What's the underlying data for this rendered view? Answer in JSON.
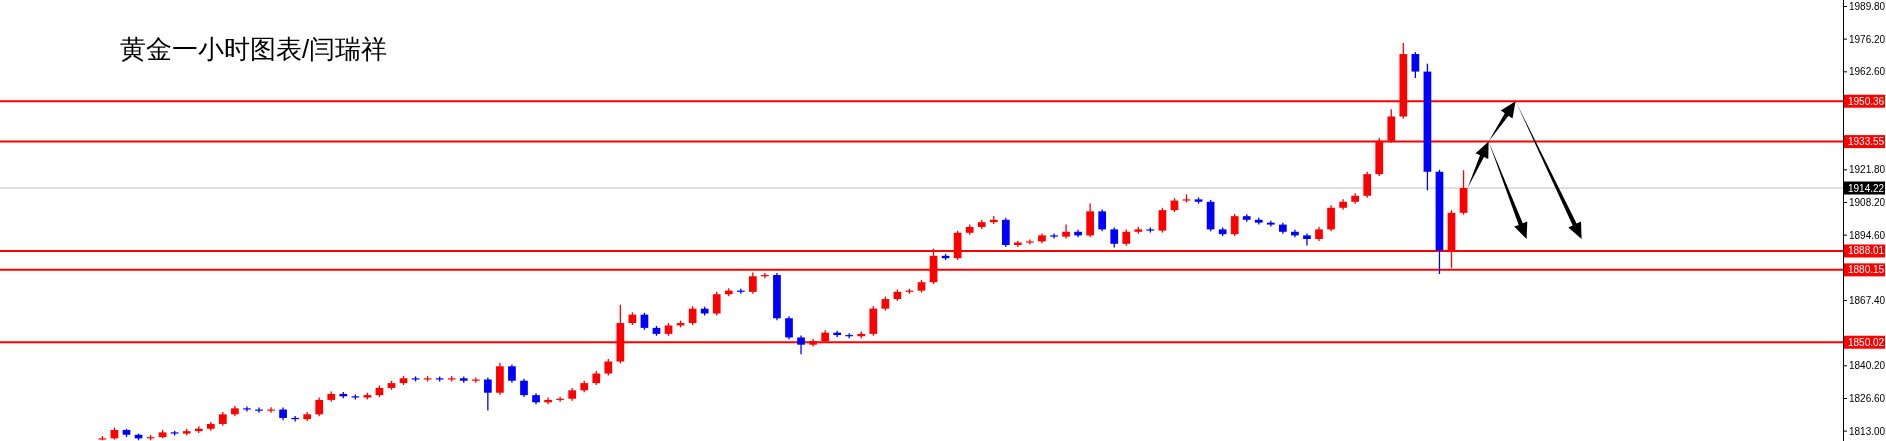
{
  "chart_data": {
    "type": "candlestick",
    "title": "黄金一小时图表/闫瑞祥",
    "categories": [
      null,
      null,
      null,
      null,
      null,
      null,
      null,
      null,
      null,
      null,
      null,
      null,
      null,
      null,
      null,
      null,
      null,
      null,
      null,
      null,
      null,
      null,
      null,
      null,
      null,
      null,
      null,
      null,
      null,
      null,
      null,
      null,
      null,
      null,
      null,
      null,
      null,
      null,
      null,
      null,
      null,
      null,
      null,
      null,
      null,
      null,
      null,
      null,
      null,
      null,
      null,
      null,
      null,
      null,
      null,
      null,
      null,
      null,
      null,
      null,
      null,
      null,
      null,
      null,
      null,
      null,
      null,
      null,
      null,
      null,
      null,
      null,
      null,
      null,
      null,
      null,
      null,
      null,
      null,
      null,
      null,
      null,
      null,
      null,
      null,
      null,
      null,
      null,
      null,
      null,
      null,
      null,
      null,
      null,
      null,
      null,
      null,
      null,
      null,
      null,
      null,
      null,
      null,
      null,
      null,
      null,
      null,
      null,
      null,
      null,
      null,
      null,
      null,
      null,
      null,
      null,
      null,
      null,
      null,
      null,
      null,
      null,
      null,
      null,
      null,
      null,
      null,
      null,
      null,
      null,
      null,
      null,
      null,
      null,
      null,
      null,
      null,
      null,
      null,
      null,
      null,
      null,
      null,
      null,
      null,
      null,
      null,
      null,
      null,
      null,
      null,
      null,
      null
    ],
    "ohlc": [
      null,
      null,
      null,
      null,
      null,
      null,
      null,
      null,
      [
        1809.5,
        1811,
        1809.2,
        1810
      ],
      [
        1810,
        1814.5,
        1809.5,
        1813.5
      ],
      [
        1813.5,
        1814,
        1810.5,
        1811.5
      ],
      [
        1811.5,
        1812,
        1809.2,
        1810
      ],
      [
        1810,
        1811.5,
        1809.2,
        1810.5
      ],
      [
        1810.5,
        1813.5,
        1810,
        1812.5
      ],
      [
        1812.5,
        1813.2,
        1811.2,
        1812
      ],
      [
        1812,
        1814,
        1811.2,
        1813
      ],
      [
        1813,
        1815,
        1812.2,
        1814
      ],
      [
        1814,
        1816.8,
        1813.2,
        1816
      ],
      [
        1816,
        1821,
        1815.2,
        1820
      ],
      [
        1820,
        1823.5,
        1819.2,
        1822.5
      ],
      [
        1822.5,
        1823.3,
        1821.2,
        1822
      ],
      [
        1822,
        1822.8,
        1820.7,
        1821.5
      ],
      [
        1821.5,
        1823,
        1820.7,
        1822
      ],
      [
        1822,
        1822.8,
        1817.5,
        1818.5
      ],
      [
        1818.5,
        1819.3,
        1817,
        1818
      ],
      [
        1818,
        1821,
        1817.2,
        1820
      ],
      [
        1820,
        1827,
        1819.2,
        1826
      ],
      [
        1826,
        1829.5,
        1825.2,
        1828.5
      ],
      [
        1828.5,
        1829.3,
        1826.7,
        1827.5
      ],
      [
        1827.5,
        1828.3,
        1826.2,
        1827
      ],
      [
        1827,
        1829,
        1826.2,
        1828
      ],
      [
        1828,
        1832,
        1827.2,
        1831
      ],
      [
        1831,
        1834,
        1830.2,
        1833
      ],
      [
        1833,
        1836,
        1832.2,
        1835
      ],
      [
        1835,
        1835.8,
        1833.7,
        1834.5
      ],
      [
        1834.5,
        1836,
        1833.7,
        1835
      ],
      [
        1835,
        1835.8,
        1833.7,
        1834.5
      ],
      [
        1834.5,
        1836,
        1833.7,
        1835
      ],
      [
        1835,
        1835.8,
        1833.2,
        1834
      ],
      [
        1834,
        1835.3,
        1833.2,
        1834.5
      ],
      [
        1834.5,
        1835.3,
        1821.6,
        1829
      ],
      [
        1829,
        1841.5,
        1828.2,
        1840
      ],
      [
        1840,
        1840.8,
        1833.2,
        1834
      ],
      [
        1834,
        1834.8,
        1827.2,
        1828
      ],
      [
        1828,
        1828.8,
        1824.2,
        1825
      ],
      [
        1825,
        1827,
        1824.2,
        1826
      ],
      [
        1826,
        1827.3,
        1825.2,
        1826.5
      ],
      [
        1826.5,
        1831,
        1825.7,
        1830
      ],
      [
        1830,
        1834,
        1829.2,
        1833
      ],
      [
        1833,
        1838,
        1832.2,
        1837
      ],
      [
        1837,
        1843,
        1836.2,
        1842
      ],
      [
        1842,
        1865.6,
        1841.2,
        1858
      ],
      [
        1858,
        1862.5,
        1857.2,
        1861.5
      ],
      [
        1861.5,
        1862.3,
        1855.2,
        1856
      ],
      [
        1856,
        1856.8,
        1852.7,
        1853.5
      ],
      [
        1853.5,
        1858,
        1852.7,
        1857
      ],
      [
        1857,
        1859,
        1856.2,
        1858
      ],
      [
        1858,
        1865,
        1857.2,
        1864
      ],
      [
        1864,
        1864.8,
        1861.2,
        1862
      ],
      [
        1862,
        1871,
        1861.2,
        1870
      ],
      [
        1870,
        1872.5,
        1869.2,
        1871.5
      ],
      [
        1871.5,
        1872.3,
        1870.2,
        1871
      ],
      [
        1871,
        1879,
        1870.2,
        1877.5
      ],
      [
        1877.5,
        1878.8,
        1876.7,
        1878
      ],
      [
        1878,
        1878.8,
        1859.2,
        1860
      ],
      [
        1860,
        1860.8,
        1851.2,
        1852
      ],
      [
        1852,
        1852.8,
        1845,
        1849
      ],
      [
        1849,
        1851.5,
        1848.2,
        1850.5
      ],
      [
        1850.5,
        1855,
        1849.7,
        1854
      ],
      [
        1854,
        1854.8,
        1852.2,
        1853
      ],
      [
        1853,
        1853.8,
        1851.7,
        1852.5
      ],
      [
        1852.5,
        1854.5,
        1851.7,
        1853.5
      ],
      [
        1853.5,
        1865,
        1852.7,
        1864
      ],
      [
        1864,
        1869,
        1863.2,
        1868
      ],
      [
        1868,
        1872,
        1867.2,
        1871
      ],
      [
        1871,
        1872.3,
        1870.2,
        1871.5
      ],
      [
        1871.5,
        1876,
        1870.7,
        1875
      ],
      [
        1875,
        1889,
        1874.2,
        1886
      ],
      [
        1886,
        1886.8,
        1884.2,
        1885
      ],
      [
        1885,
        1896.4,
        1884.2,
        1895.6
      ],
      [
        1895.6,
        1899,
        1894.8,
        1898
      ],
      [
        1898,
        1901,
        1897.2,
        1900
      ],
      [
        1900,
        1902.6,
        1899.2,
        1901
      ],
      [
        1901,
        1901.8,
        1889.7,
        1890.5
      ],
      [
        1890.5,
        1892.3,
        1889.7,
        1891.5
      ],
      [
        1891.5,
        1892.8,
        1890.7,
        1892
      ],
      [
        1892,
        1895.3,
        1891.2,
        1894.5
      ],
      [
        1894.5,
        1895.3,
        1893.2,
        1894
      ],
      [
        1894,
        1899,
        1893.2,
        1896
      ],
      [
        1896,
        1896.8,
        1893.7,
        1894.5
      ],
      [
        1894.5,
        1907.8,
        1893.7,
        1904.5
      ],
      [
        1904.5,
        1905.3,
        1896.2,
        1897
      ],
      [
        1897,
        1897.8,
        1889.5,
        1891
      ],
      [
        1891,
        1897,
        1890.2,
        1896
      ],
      [
        1896,
        1898,
        1895.2,
        1897
      ],
      [
        1897,
        1897.8,
        1895.7,
        1896.5
      ],
      [
        1896.5,
        1906,
        1895.7,
        1905
      ],
      [
        1905,
        1910,
        1904.2,
        1909
      ],
      [
        1909,
        1911.6,
        1908.2,
        1909.5
      ],
      [
        1909.5,
        1910.3,
        1907.7,
        1908.5
      ],
      [
        1908.5,
        1909.3,
        1896.2,
        1897
      ],
      [
        1897,
        1897.8,
        1894.2,
        1895
      ],
      [
        1895,
        1903.4,
        1894.2,
        1902.5
      ],
      [
        1902.5,
        1903.3,
        1900.2,
        1901
      ],
      [
        1901,
        1901.8,
        1899,
        1899.8
      ],
      [
        1899.8,
        1900.6,
        1898.2,
        1899
      ],
      [
        1899,
        1899.8,
        1895.2,
        1896
      ],
      [
        1896,
        1896.8,
        1893.7,
        1894.5
      ],
      [
        1894.5,
        1895.3,
        1890.3,
        1893
      ],
      [
        1893,
        1898,
        1892.2,
        1897
      ],
      [
        1897,
        1907,
        1896.2,
        1906
      ],
      [
        1906,
        1909.5,
        1905.2,
        1908.5
      ],
      [
        1908.5,
        1912,
        1907.7,
        1911
      ],
      [
        1911,
        1921,
        1910.2,
        1920
      ],
      [
        1920,
        1935,
        1919.2,
        1933.9
      ],
      [
        1933.9,
        1947,
        1933.1,
        1944
      ],
      [
        1944,
        1974.6,
        1943.2,
        1970
      ],
      [
        1970,
        1970.8,
        1960,
        1962.7
      ],
      [
        1962.7,
        1966,
        1913.3,
        1921
      ],
      [
        1921,
        1921.8,
        1878.4,
        1888.2
      ],
      [
        1888.2,
        1905,
        1881,
        1903.9
      ],
      [
        1903.9,
        1921.6,
        1903.1,
        1914.22
      ],
      null,
      null,
      null,
      null,
      null,
      null,
      null,
      null,
      null,
      null,
      null,
      null,
      null,
      null,
      null,
      null,
      null,
      null,
      null,
      null,
      null,
      null,
      null,
      null,
      null,
      null,
      null,
      null,
      null,
      null,
      null
    ],
    "colors": [
      null,
      null,
      null,
      null,
      null,
      null,
      null,
      null,
      "#ff0000",
      "#ff0000",
      "#0000ff",
      "#0000ff",
      "#ff0000",
      "#ff0000",
      "#0000ff",
      "#ff0000",
      "#ff0000",
      "#ff0000",
      "#ff0000",
      "#ff0000",
      "#0000ff",
      "#0000ff",
      "#ff0000",
      "#0000ff",
      "#0000ff",
      "#ff0000",
      "#ff0000",
      "#ff0000",
      "#0000ff",
      "#0000ff",
      "#ff0000",
      "#ff0000",
      "#ff0000",
      "#ff0000",
      "#0000ff",
      "#ff0000",
      "#0000ff",
      "#ff0000",
      "#0000ff",
      "#ff0000",
      "#0000ff",
      "#ff0000",
      "#0000ff",
      "#0000ff",
      "#0000ff",
      "#ff0000",
      "#ff0000",
      "#ff0000",
      "#ff0000",
      "#ff0000",
      "#ff0000",
      "#ff0000",
      "#ff0000",
      "#0000ff",
      "#0000ff",
      "#ff0000",
      "#ff0000",
      "#ff0000",
      "#0000ff",
      "#ff0000",
      "#ff0000",
      "#0000ff",
      "#ff0000",
      "#ff0000",
      "#0000ff",
      "#0000ff",
      "#0000ff",
      "#ff0000",
      "#ff0000",
      "#0000ff",
      "#0000ff",
      "#ff0000",
      "#ff0000",
      "#ff0000",
      "#ff0000",
      "#ff0000",
      "#ff0000",
      "#ff0000",
      "#0000ff",
      "#ff0000",
      "#ff0000",
      "#ff0000",
      "#ff0000",
      "#0000ff",
      "#ff0000",
      "#ff0000",
      "#ff0000",
      "#0000ff",
      "#ff0000",
      "#0000ff",
      "#ff0000",
      "#0000ff",
      "#0000ff",
      "#ff0000",
      "#ff0000",
      "#0000ff",
      "#ff0000",
      "#ff0000",
      "#ff0000",
      "#0000ff",
      "#0000ff",
      "#0000ff",
      "#ff0000",
      "#0000ff",
      "#0000ff",
      "#0000ff",
      "#0000ff",
      "#0000ff",
      "#0000ff",
      "#ff0000",
      "#ff0000",
      "#ff0000",
      "#ff0000",
      "#ff0000",
      "#ff0000",
      "#ff0000",
      "#ff0000",
      "#0000ff",
      "#0000ff",
      "#0000ff",
      "#ff0000",
      "#ff0000",
      null,
      null,
      null,
      null,
      null,
      null,
      null,
      null,
      null,
      null,
      null,
      null,
      null,
      null,
      null,
      null,
      null,
      null,
      null,
      null,
      null,
      null,
      null,
      null,
      null,
      null,
      null,
      null,
      null,
      null,
      null
    ],
    "ylim": [
      1808.9,
      1992.5
    ],
    "yticks": [
      {
        "value": 1989.8,
        "label": "1989.80"
      },
      {
        "value": 1976.2,
        "label": "1976.20"
      },
      {
        "value": 1962.6,
        "label": "1962.60"
      },
      {
        "value": 1921.8,
        "label": "1921.80"
      },
      {
        "value": 1908.2,
        "label": "1908.20"
      },
      {
        "value": 1894.6,
        "label": "1894.60"
      },
      {
        "value": 1867.4,
        "label": "1867.40"
      },
      {
        "value": 1840.2,
        "label": "1840.20"
      },
      {
        "value": 1826.6,
        "label": "1826.60"
      },
      {
        "value": 1813,
        "label": "1813.00"
      }
    ],
    "ref_lines": [
      {
        "axis": "y",
        "value": 1950.36,
        "label": "1950.36",
        "color": "#ff0000"
      },
      {
        "axis": "y",
        "value": 1933.55,
        "label": "1933.55",
        "color": "#ff0000"
      },
      {
        "axis": "y",
        "value": 1914.22,
        "label": "1914.22",
        "color": "#c0c0c0"
      },
      {
        "axis": "y",
        "value": 1888.01,
        "label": "1888.01",
        "color": "#ff0000"
      },
      {
        "axis": "y",
        "value": 1880.15,
        "label": "1880.15",
        "color": "#ff0000"
      },
      {
        "axis": "y",
        "value": 1850.02,
        "label": "1850.02",
        "color": "#ff0000"
      }
    ],
    "grid": false,
    "tick_labels": "y"
  }
}
